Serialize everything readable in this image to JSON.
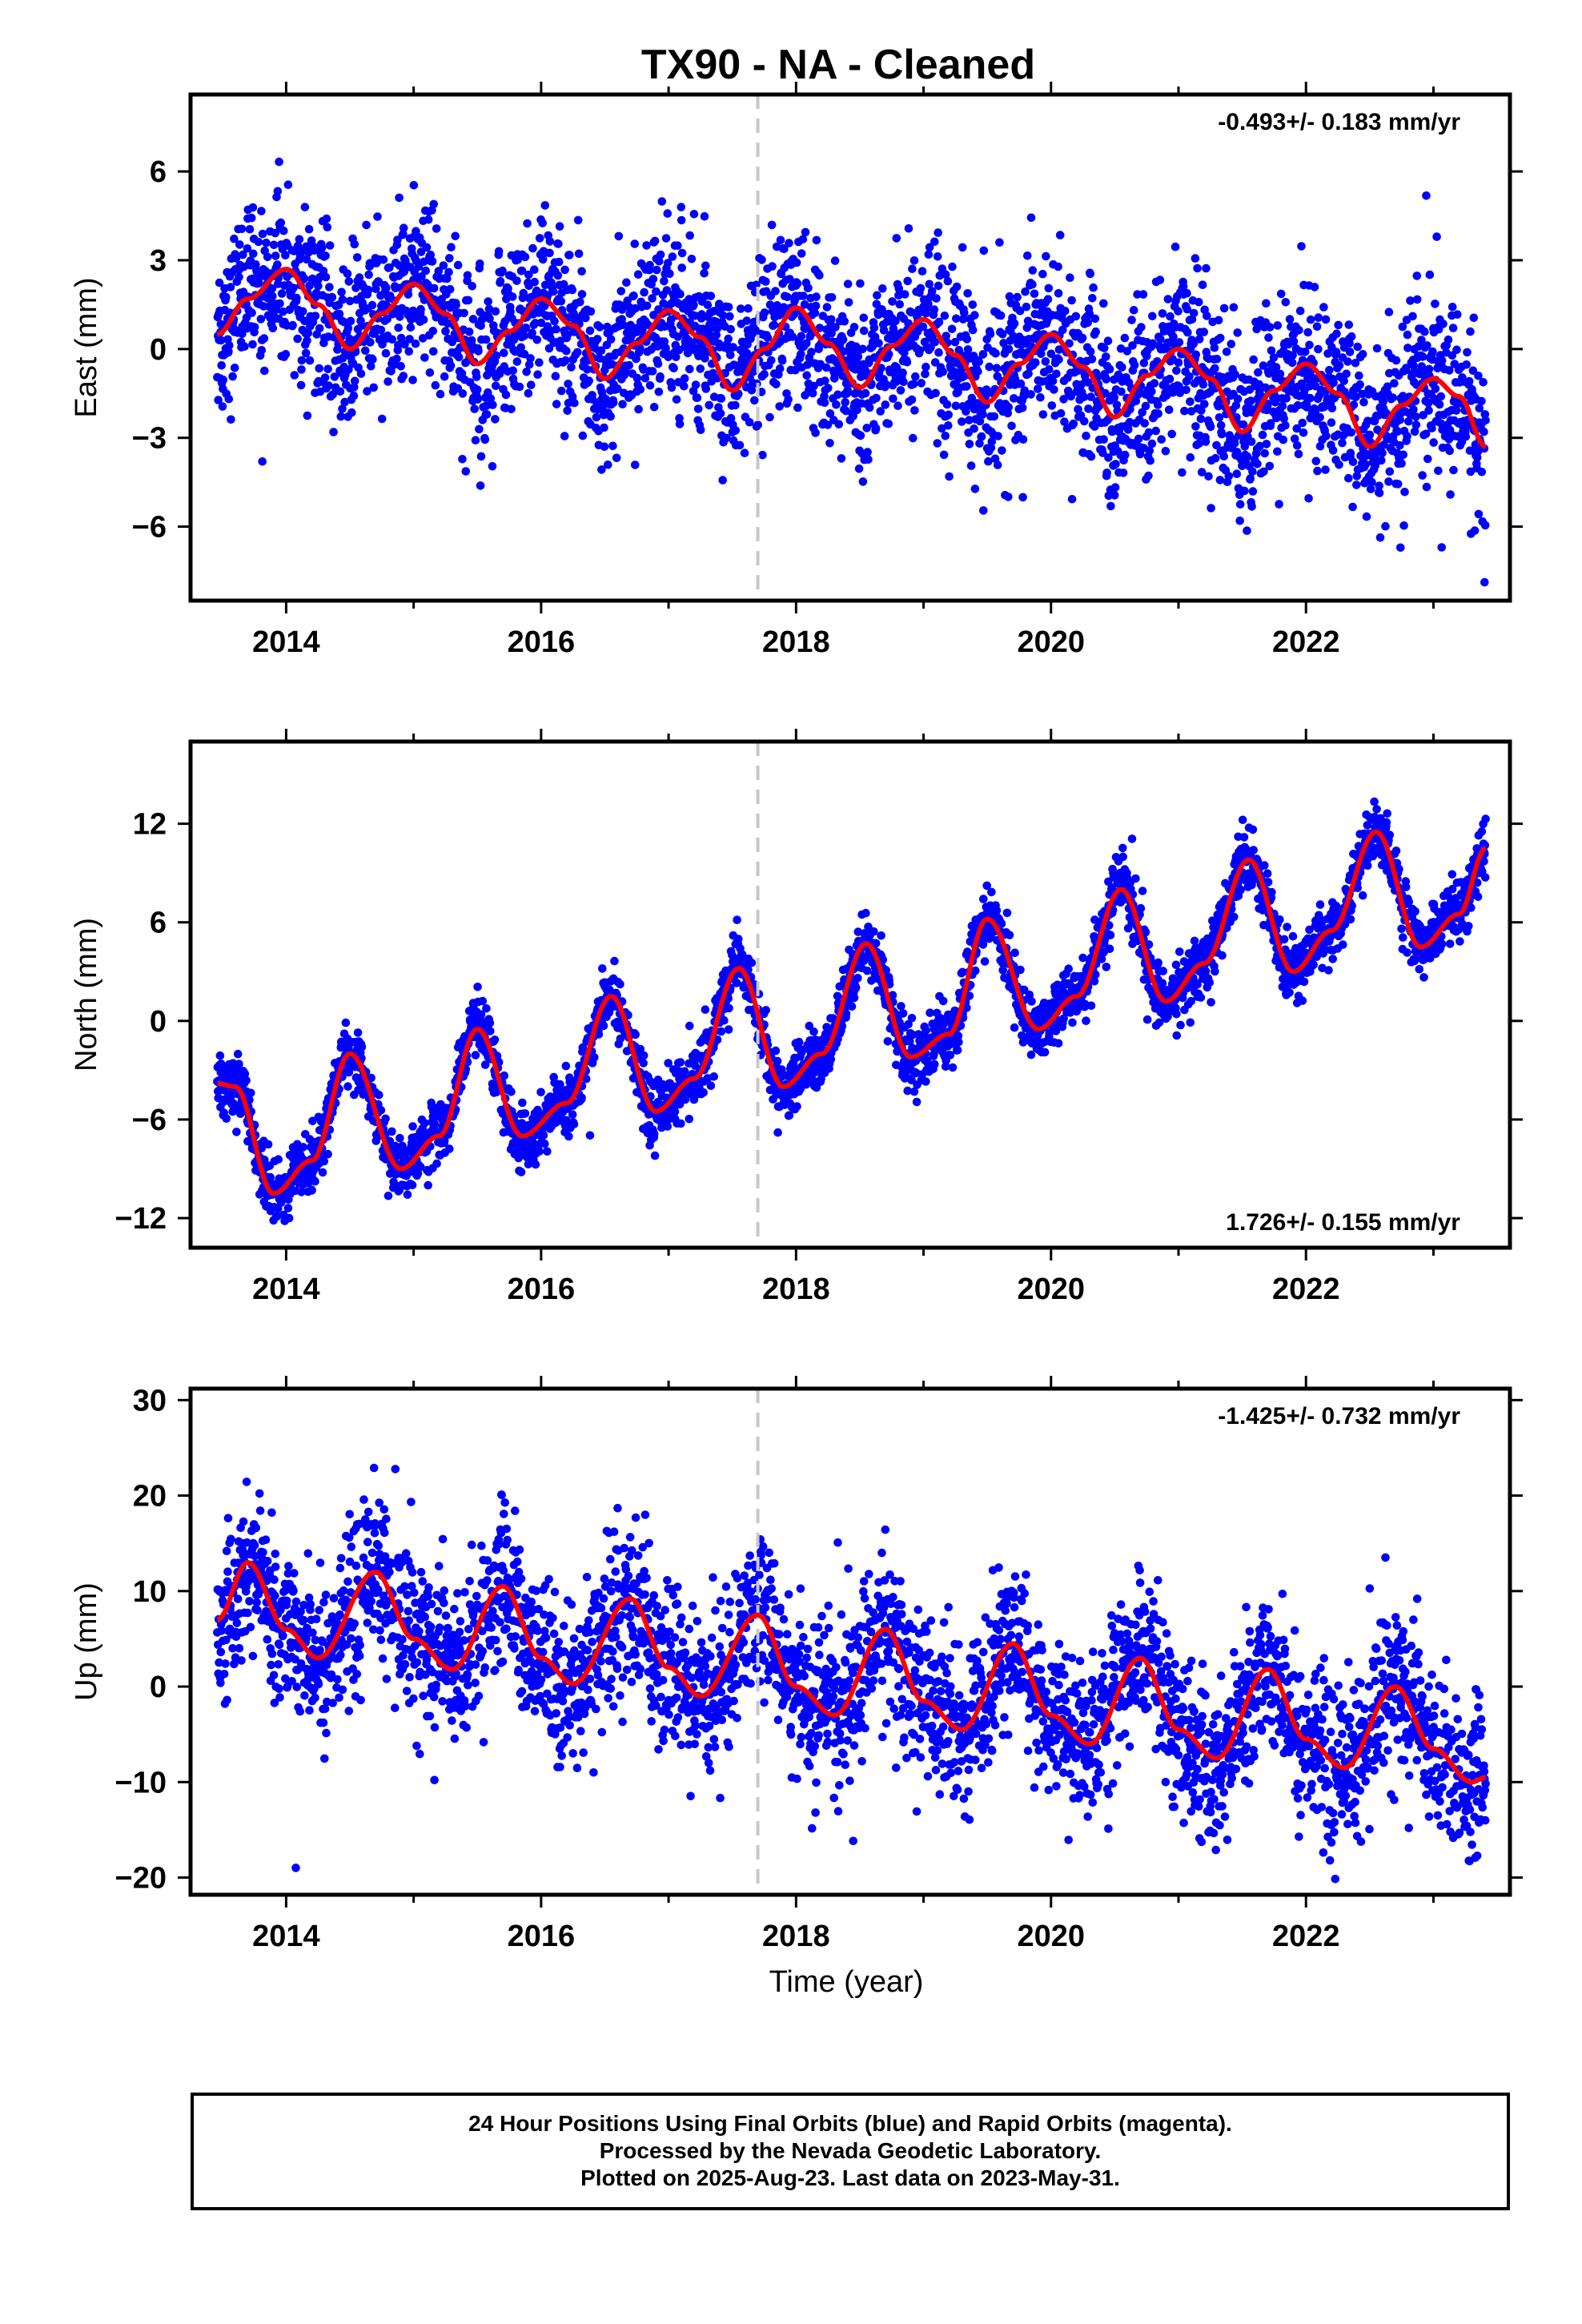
{
  "title": "TX90  - NA - Cleaned",
  "xlabel": "Time (year)",
  "footer": {
    "line1": "24 Hour Positions Using Final Orbits (blue) and Rapid Orbits (magenta).",
    "line2": "Processed by the Nevada Geodetic Laboratory.",
    "line3": "Plotted on 2025-Aug-23. Last data on 2023-May-31."
  },
  "colors": {
    "points": "#0000ff",
    "fit": "#ff0000",
    "marker_line": "#c8c8c8",
    "axis": "#000000"
  },
  "chart_data": [
    {
      "type": "scatter",
      "name": "east",
      "ylabel": "East (mm)",
      "rate_label": "-0.493+/- 0.183 mm/yr",
      "rate_position": "top-right",
      "xlim": [
        2013.25,
        2023.6
      ],
      "ylim": [
        -8.5,
        8.6
      ],
      "xticks": [
        2014,
        2016,
        2018,
        2020,
        2022
      ],
      "yticks": [
        -6,
        -3,
        0,
        3,
        6
      ],
      "yticklabels": [
        "−6",
        "−3",
        "0",
        "3",
        "6"
      ],
      "vline_x": 2017.7,
      "grid": false,
      "model": {
        "t0": 2013.46,
        "t1": 2023.41,
        "offset": 1.0,
        "rate": -0.493,
        "amp_annual": 1.45,
        "phase_annual": 0.0,
        "amp_semi": 0.4,
        "phase_semi": 0.5,
        "scatter": 1.4
      },
      "fit_curve": [
        [
          2013.46,
          0.5
        ],
        [
          2013.7,
          1.7
        ],
        [
          2014.0,
          2.7
        ],
        [
          2014.25,
          1.5
        ],
        [
          2014.5,
          0.0
        ],
        [
          2014.75,
          1.2
        ],
        [
          2015.0,
          2.2
        ],
        [
          2015.25,
          1.2
        ],
        [
          2015.5,
          -0.5
        ],
        [
          2015.75,
          0.6
        ],
        [
          2016.0,
          1.7
        ],
        [
          2016.25,
          0.8
        ],
        [
          2016.5,
          -1.0
        ],
        [
          2016.75,
          0.2
        ],
        [
          2017.0,
          1.3
        ],
        [
          2017.25,
          0.4
        ],
        [
          2017.5,
          -1.4
        ],
        [
          2017.75,
          0.0
        ],
        [
          2018.0,
          1.4
        ],
        [
          2018.25,
          0.2
        ],
        [
          2018.5,
          -1.3
        ],
        [
          2018.75,
          0.1
        ],
        [
          2019.0,
          1.0
        ],
        [
          2019.25,
          -0.2
        ],
        [
          2019.5,
          -1.8
        ],
        [
          2019.75,
          -0.5
        ],
        [
          2020.0,
          0.5
        ],
        [
          2020.25,
          -0.6
        ],
        [
          2020.5,
          -2.3
        ],
        [
          2020.75,
          -0.9
        ],
        [
          2021.0,
          0.0
        ],
        [
          2021.25,
          -1.0
        ],
        [
          2021.5,
          -2.8
        ],
        [
          2021.75,
          -1.4
        ],
        [
          2022.0,
          -0.5
        ],
        [
          2022.25,
          -1.5
        ],
        [
          2022.5,
          -3.3
        ],
        [
          2022.75,
          -1.9
        ],
        [
          2023.0,
          -1.0
        ],
        [
          2023.2,
          -1.6
        ],
        [
          2023.41,
          -3.3
        ]
      ]
    },
    {
      "type": "scatter",
      "name": "north",
      "ylabel": "North (mm)",
      "rate_label": "1.726+/- 0.155 mm/yr",
      "rate_position": "bottom-right",
      "xlim": [
        2013.25,
        2023.6
      ],
      "ylim": [
        -13.8,
        17.0
      ],
      "xticks": [
        2014,
        2016,
        2018,
        2020,
        2022
      ],
      "yticks": [
        -12,
        -6,
        0,
        6,
        12
      ],
      "yticklabels": [
        "−12",
        "−6",
        "0",
        "6",
        "12"
      ],
      "vline_x": 2017.7,
      "grid": false,
      "model": {
        "t0": 2013.46,
        "t1": 2023.41,
        "offset": -6.2,
        "rate": 1.726,
        "amp_annual": 4.3,
        "phase_annual": 0.0,
        "amp_semi": 1.0,
        "phase_semi": 0.0,
        "scatter": 0.9
      },
      "fit_curve": [
        [
          2013.46,
          -3.8
        ],
        [
          2013.6,
          -4.0
        ],
        [
          2013.9,
          -10.5
        ],
        [
          2014.2,
          -8.5
        ],
        [
          2014.5,
          -2.0
        ],
        [
          2014.9,
          -9.0
        ],
        [
          2015.2,
          -7.0
        ],
        [
          2015.5,
          -0.5
        ],
        [
          2015.85,
          -7.0
        ],
        [
          2016.2,
          -5.0
        ],
        [
          2016.55,
          1.5
        ],
        [
          2016.9,
          -5.5
        ],
        [
          2017.2,
          -3.5
        ],
        [
          2017.55,
          3.2
        ],
        [
          2017.9,
          -4.0
        ],
        [
          2018.2,
          -2.0
        ],
        [
          2018.55,
          4.7
        ],
        [
          2018.9,
          -2.2
        ],
        [
          2019.2,
          -0.8
        ],
        [
          2019.5,
          6.2
        ],
        [
          2019.9,
          -0.5
        ],
        [
          2020.2,
          1.5
        ],
        [
          2020.55,
          8.0
        ],
        [
          2020.9,
          1.2
        ],
        [
          2021.2,
          3.5
        ],
        [
          2021.55,
          9.8
        ],
        [
          2021.9,
          3.0
        ],
        [
          2022.2,
          5.5
        ],
        [
          2022.55,
          11.5
        ],
        [
          2022.9,
          4.5
        ],
        [
          2023.2,
          6.5
        ],
        [
          2023.41,
          10.5
        ]
      ]
    },
    {
      "type": "scatter",
      "name": "up",
      "ylabel": "Up (mm)",
      "rate_label": "-1.425+/- 0.732 mm/yr",
      "rate_position": "top-right",
      "xlim": [
        2013.25,
        2023.6
      ],
      "ylim": [
        -21.8,
        31.2
      ],
      "xticks": [
        2014,
        2016,
        2018,
        2020,
        2022
      ],
      "yticks": [
        -20,
        -10,
        0,
        10,
        20,
        30
      ],
      "yticklabels": [
        "−20",
        "−10",
        "0",
        "10",
        "20",
        "30"
      ],
      "vline_x": 2017.7,
      "grid": false,
      "model": {
        "t0": 2013.46,
        "t1": 2023.41,
        "offset": 8.0,
        "rate": -1.425,
        "amp_annual": 5.0,
        "phase_annual": 0.0,
        "amp_semi": 1.0,
        "phase_semi": 0.0,
        "scatter": 4.0
      },
      "fit_curve": [
        [
          2013.46,
          7.0
        ],
        [
          2013.7,
          13.0
        ],
        [
          2014.0,
          6.0
        ],
        [
          2014.25,
          3.0
        ],
        [
          2014.7,
          12.0
        ],
        [
          2015.0,
          5.0
        ],
        [
          2015.3,
          1.8
        ],
        [
          2015.7,
          10.5
        ],
        [
          2016.0,
          3.0
        ],
        [
          2016.25,
          0.3
        ],
        [
          2016.7,
          9.2
        ],
        [
          2017.0,
          2.0
        ],
        [
          2017.25,
          -1.0
        ],
        [
          2017.7,
          7.5
        ],
        [
          2018.0,
          0.0
        ],
        [
          2018.3,
          -3.0
        ],
        [
          2018.7,
          6.0
        ],
        [
          2019.0,
          -1.5
        ],
        [
          2019.3,
          -4.5
        ],
        [
          2019.7,
          4.5
        ],
        [
          2020.0,
          -3.0
        ],
        [
          2020.3,
          -6.0
        ],
        [
          2020.7,
          3.0
        ],
        [
          2021.0,
          -4.5
        ],
        [
          2021.3,
          -7.5
        ],
        [
          2021.7,
          1.8
        ],
        [
          2022.0,
          -5.5
        ],
        [
          2022.3,
          -8.5
        ],
        [
          2022.7,
          0.0
        ],
        [
          2023.0,
          -6.5
        ],
        [
          2023.3,
          -10.0
        ],
        [
          2023.41,
          -9.5
        ]
      ]
    }
  ]
}
